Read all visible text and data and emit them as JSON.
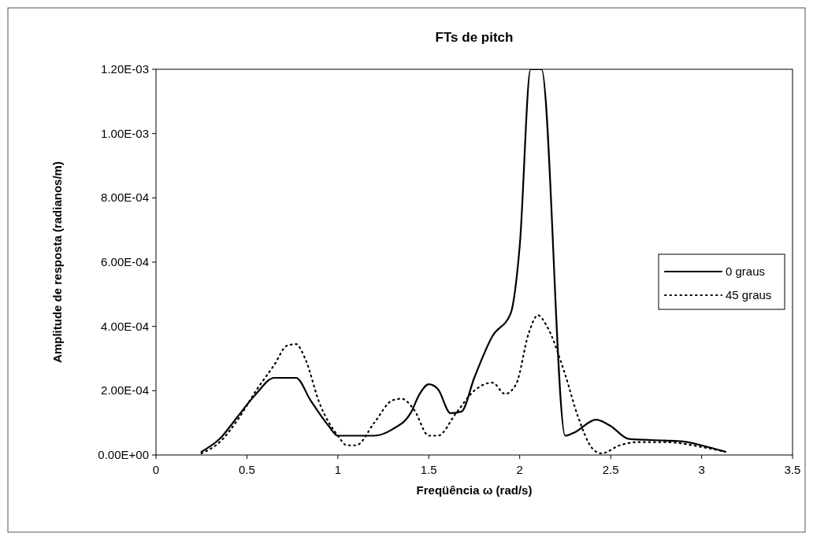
{
  "chart_data": {
    "type": "line",
    "title": "FTs de pitch",
    "xlabel": "Freqüência ω (rad/s)",
    "ylabel": "Amplitude de resposta (radianos/m)",
    "xlim": [
      0,
      3.5
    ],
    "xticks": [
      0,
      0.5,
      1,
      1.5,
      2,
      2.5,
      3,
      3.5
    ],
    "ylim": [
      0,
      0.0012
    ],
    "yticks": [
      {
        "value": 0,
        "label": "0.00E+00"
      },
      {
        "value": 0.0002,
        "label": "2.00E-04"
      },
      {
        "value": 0.0004,
        "label": "4.00E-04"
      },
      {
        "value": 0.0006,
        "label": "6.00E-04"
      },
      {
        "value": 0.0008,
        "label": "8.00E-04"
      },
      {
        "value": 0.001,
        "label": "1.00E-03"
      },
      {
        "value": 0.0012,
        "label": "1.20E-03"
      }
    ],
    "grid": false,
    "legend": "right",
    "marker": "none",
    "series": [
      {
        "name": "0 graus",
        "color": "#000000",
        "line_style": "solid",
        "x": [
          0.25,
          0.35,
          0.45,
          0.55,
          0.65,
          0.77,
          0.85,
          0.95,
          1.0,
          1.2,
          1.3,
          1.4,
          1.45,
          1.5,
          1.55,
          1.62,
          1.68,
          1.75,
          1.85,
          1.95,
          2.0,
          2.06,
          2.12,
          2.25,
          2.3,
          2.42,
          2.5,
          2.6,
          2.8,
          2.9,
          3.0,
          3.13
        ],
        "values": [
          1e-05,
          5e-05,
          0.00012,
          0.00019,
          0.00024,
          0.00024,
          0.00017,
          9e-05,
          6e-05,
          6e-05,
          8e-05,
          0.00013,
          0.00019,
          0.00022,
          0.000205,
          0.00013,
          0.000135,
          0.00024,
          0.00037,
          0.00044,
          0.00065,
          0.0012,
          0.0012,
          6e-05,
          7e-05,
          0.00011,
          9e-05,
          5e-05,
          4.5e-05,
          4.2e-05,
          3e-05,
          1e-05
        ]
      },
      {
        "name": "45 graus",
        "color": "#000000",
        "line_style": "dotted",
        "x": [
          0.25,
          0.35,
          0.45,
          0.55,
          0.65,
          0.72,
          0.77,
          0.82,
          0.9,
          1.0,
          1.05,
          1.1,
          1.2,
          1.3,
          1.35,
          1.42,
          1.5,
          1.55,
          1.65,
          1.75,
          1.85,
          1.92,
          1.98,
          2.05,
          2.1,
          2.15,
          2.25,
          2.32,
          2.4,
          2.45,
          2.55,
          2.65,
          2.8,
          3.0,
          3.13
        ],
        "values": [
          5e-06,
          4e-05,
          0.00011,
          0.0002,
          0.00028,
          0.00034,
          0.000345,
          0.0003,
          0.00016,
          6e-05,
          3e-05,
          3e-05,
          0.0001,
          0.00017,
          0.000175,
          0.00014,
          6e-05,
          6e-05,
          0.00013,
          0.0002,
          0.000225,
          0.00019,
          0.00022,
          0.00038,
          0.000435,
          0.0004,
          0.00025,
          0.00012,
          2e-05,
          5e-06,
          3e-05,
          4e-05,
          4e-05,
          2.5e-05,
          1e-05
        ]
      }
    ]
  }
}
